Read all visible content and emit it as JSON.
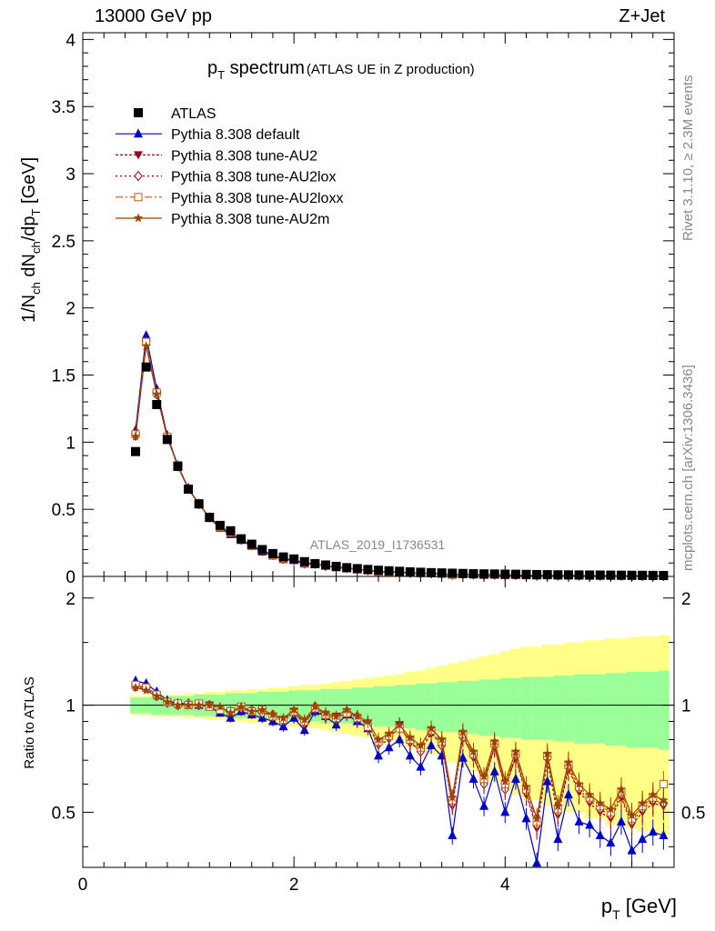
{
  "header": {
    "left": "13000 GeV pp",
    "right": "Z+Jet"
  },
  "side_text": {
    "rivet": "Rivet 3.1.10, ≥ 2.3M events",
    "mcplots": "mcplots.cern.ch [arXiv:1306.3436]"
  },
  "watermark": "ATLAS_2019_I1736531",
  "chart_data": [
    {
      "type": "scatter",
      "title_main": "p_T spectrum",
      "title_note": "(ATLAS UE in Z production)",
      "ylabel": "1/N_ch dN_ch/dp_T [GeV]",
      "xlim": [
        0,
        5.6
      ],
      "ylim": [
        0,
        4.05
      ],
      "yticks": [
        {
          "v": 0,
          "label": "0"
        },
        {
          "v": 0.5,
          "label": "0.5"
        },
        {
          "v": 1,
          "label": "1"
        },
        {
          "v": 1.5,
          "label": "1.5"
        },
        {
          "v": 2,
          "label": "2"
        },
        {
          "v": 2.5,
          "label": "2.5"
        },
        {
          "v": 3,
          "label": "3"
        },
        {
          "v": 3.5,
          "label": "3.5"
        },
        {
          "v": 4,
          "label": "4"
        }
      ],
      "x": [
        0.5,
        0.6,
        0.7,
        0.8,
        0.9,
        1.0,
        1.1,
        1.2,
        1.3,
        1.4,
        1.5,
        1.6,
        1.7,
        1.8,
        1.9,
        2.0,
        2.1,
        2.2,
        2.3,
        2.4,
        2.5,
        2.6,
        2.7,
        2.8,
        2.9,
        3.0,
        3.1,
        3.2,
        3.3,
        3.4,
        3.5,
        3.6,
        3.7,
        3.8,
        3.9,
        4.0,
        4.1,
        4.2,
        4.3,
        4.4,
        4.5,
        4.6,
        4.7,
        4.8,
        4.9,
        5.0,
        5.1,
        5.2,
        5.3,
        5.4,
        5.5
      ],
      "atlas": [
        0.93,
        1.56,
        1.28,
        1.02,
        0.82,
        0.65,
        0.54,
        0.44,
        0.38,
        0.34,
        0.28,
        0.24,
        0.2,
        0.17,
        0.145,
        0.13,
        0.11,
        0.095,
        0.085,
        0.075,
        0.065,
        0.058,
        0.052,
        0.046,
        0.042,
        0.038,
        0.034,
        0.031,
        0.028,
        0.026,
        0.024,
        0.022,
        0.02,
        0.019,
        0.018,
        0.017,
        0.016,
        0.015,
        0.014,
        0.013,
        0.012,
        0.0115,
        0.011,
        0.0105,
        0.01,
        0.0095,
        0.009,
        0.0085,
        0.008,
        0.0075,
        0.007
      ],
      "legend": [
        "ATLAS",
        "Pythia 8.308 default",
        "Pythia 8.308 tune-AU2",
        "Pythia 8.308 tune-AU2lox",
        "Pythia 8.308 tune-AU2loxx",
        "Pythia 8.308 tune-AU2m"
      ],
      "series": [
        {
          "name": "Pythia 8.308 default",
          "color": "#0000cc",
          "marker": "triangle",
          "dash": "",
          "ratio": [
            1.17,
            1.15,
            1.09,
            1.03,
            1.01,
            1.01,
            1.0,
            0.99,
            0.95,
            0.92,
            0.96,
            0.94,
            0.92,
            0.9,
            0.87,
            0.92,
            0.85,
            0.96,
            0.93,
            0.88,
            0.94,
            0.9,
            0.86,
            0.72,
            0.76,
            0.8,
            0.72,
            0.67,
            0.77,
            0.72,
            0.43,
            0.71,
            0.62,
            0.52,
            0.65,
            0.5,
            0.62,
            0.48,
            0.36,
            0.61,
            0.42,
            0.56,
            0.47,
            0.46,
            0.43,
            0.41,
            0.47,
            0.39,
            0.42,
            0.44,
            0.43
          ]
        },
        {
          "name": "Pythia 8.308 tune-AU2",
          "color": "#990022",
          "marker": "triangle-down",
          "dash": "3,2",
          "ratio": [
            1.12,
            1.11,
            1.06,
            1.01,
            1.01,
            1.0,
            1.0,
            1.0,
            0.98,
            0.95,
            0.99,
            0.95,
            0.96,
            0.93,
            0.9,
            0.96,
            0.88,
            0.98,
            0.92,
            0.93,
            0.94,
            0.92,
            0.89,
            0.77,
            0.8,
            0.88,
            0.78,
            0.75,
            0.83,
            0.78,
            0.52,
            0.82,
            0.71,
            0.61,
            0.76,
            0.59,
            0.71,
            0.56,
            0.45,
            0.7,
            0.49,
            0.66,
            0.57,
            0.53,
            0.5,
            0.48,
            0.55,
            0.46,
            0.5,
            0.53,
            0.52
          ]
        },
        {
          "name": "Pythia 8.308 tune-AU2lox",
          "color": "#990022",
          "marker": "diamond",
          "dash": "2,3",
          "ratio": [
            1.13,
            1.12,
            1.06,
            1.02,
            1.0,
            1.01,
            1.0,
            1.0,
            0.98,
            0.96,
            0.98,
            0.97,
            0.95,
            0.94,
            0.91,
            0.95,
            0.89,
            0.99,
            0.93,
            0.92,
            0.96,
            0.93,
            0.88,
            0.78,
            0.81,
            0.87,
            0.79,
            0.74,
            0.84,
            0.77,
            0.53,
            0.81,
            0.72,
            0.6,
            0.77,
            0.58,
            0.72,
            0.57,
            0.46,
            0.71,
            0.5,
            0.67,
            0.58,
            0.54,
            0.51,
            0.49,
            0.56,
            0.47,
            0.51,
            0.54,
            0.53
          ]
        },
        {
          "name": "Pythia 8.308 tune-AU2loxx",
          "color": "#cc5500",
          "marker": "square",
          "dash": "8,3,2,3",
          "ratio": [
            1.14,
            1.12,
            1.07,
            1.02,
            1.01,
            1.0,
            1.01,
            0.99,
            0.97,
            0.96,
            0.99,
            0.96,
            0.97,
            0.93,
            0.91,
            0.96,
            0.9,
            0.98,
            0.94,
            0.92,
            0.95,
            0.92,
            0.87,
            0.79,
            0.82,
            0.86,
            0.8,
            0.76,
            0.85,
            0.79,
            0.54,
            0.83,
            0.73,
            0.62,
            0.78,
            0.6,
            0.73,
            0.58,
            0.47,
            0.72,
            0.51,
            0.68,
            0.59,
            0.55,
            0.52,
            0.5,
            0.57,
            0.48,
            0.52,
            0.55,
            0.6
          ]
        },
        {
          "name": "Pythia 8.308 tune-AU2m",
          "color": "#994400",
          "marker": "star",
          "dash": "",
          "ratio": [
            1.12,
            1.1,
            1.06,
            1.02,
            1.0,
            1.0,
            1.0,
            1.0,
            0.99,
            0.95,
            0.99,
            0.96,
            0.97,
            0.94,
            0.92,
            0.97,
            0.91,
            0.99,
            0.95,
            0.93,
            0.97,
            0.93,
            0.9,
            0.8,
            0.83,
            0.88,
            0.81,
            0.77,
            0.86,
            0.8,
            0.55,
            0.84,
            0.74,
            0.63,
            0.79,
            0.61,
            0.74,
            0.59,
            0.48,
            0.73,
            0.52,
            0.69,
            0.6,
            0.56,
            0.53,
            0.51,
            0.58,
            0.49,
            0.53,
            0.56,
            0.54
          ]
        }
      ]
    },
    {
      "type": "scatter",
      "ylabel": "Ratio to ATLAS",
      "xlabel": "p_T [GeV]",
      "xlim": [
        0,
        5.6
      ],
      "ylim": [
        0.35,
        2.3
      ],
      "log_scale_y": true,
      "xticks": [
        {
          "v": 0,
          "label": "0"
        },
        {
          "v": 2,
          "label": "2"
        },
        {
          "v": 4,
          "label": "4"
        }
      ],
      "yticks": [
        {
          "v": 0.5,
          "label": "0.5"
        },
        {
          "v": 1,
          "label": "1"
        },
        {
          "v": 2,
          "label": "2"
        }
      ],
      "band_inner_halfwidth": [
        0.05,
        0.05,
        0.06,
        0.06,
        0.06,
        0.06,
        0.07,
        0.07,
        0.07,
        0.08,
        0.08,
        0.08,
        0.09,
        0.09,
        0.09,
        0.1,
        0.1,
        0.1,
        0.11,
        0.11,
        0.11,
        0.12,
        0.12,
        0.13,
        0.13,
        0.14,
        0.14,
        0.15,
        0.15,
        0.16,
        0.16,
        0.17,
        0.17,
        0.18,
        0.18,
        0.19,
        0.19,
        0.2,
        0.2,
        0.2,
        0.21,
        0.21,
        0.22,
        0.22,
        0.22,
        0.23,
        0.23,
        0.24,
        0.24,
        0.24,
        0.25
      ],
      "band_outer_halfwidth": [
        0.06,
        0.06,
        0.07,
        0.07,
        0.07,
        0.08,
        0.08,
        0.09,
        0.09,
        0.1,
        0.1,
        0.11,
        0.11,
        0.12,
        0.12,
        0.13,
        0.14,
        0.14,
        0.15,
        0.16,
        0.17,
        0.18,
        0.19,
        0.2,
        0.21,
        0.22,
        0.24,
        0.25,
        0.27,
        0.29,
        0.31,
        0.33,
        0.35,
        0.37,
        0.39,
        0.42,
        0.44,
        0.46,
        0.46,
        0.48,
        0.48,
        0.5,
        0.5,
        0.52,
        0.52,
        0.54,
        0.54,
        0.55,
        0.56,
        0.56,
        0.57
      ]
    }
  ]
}
